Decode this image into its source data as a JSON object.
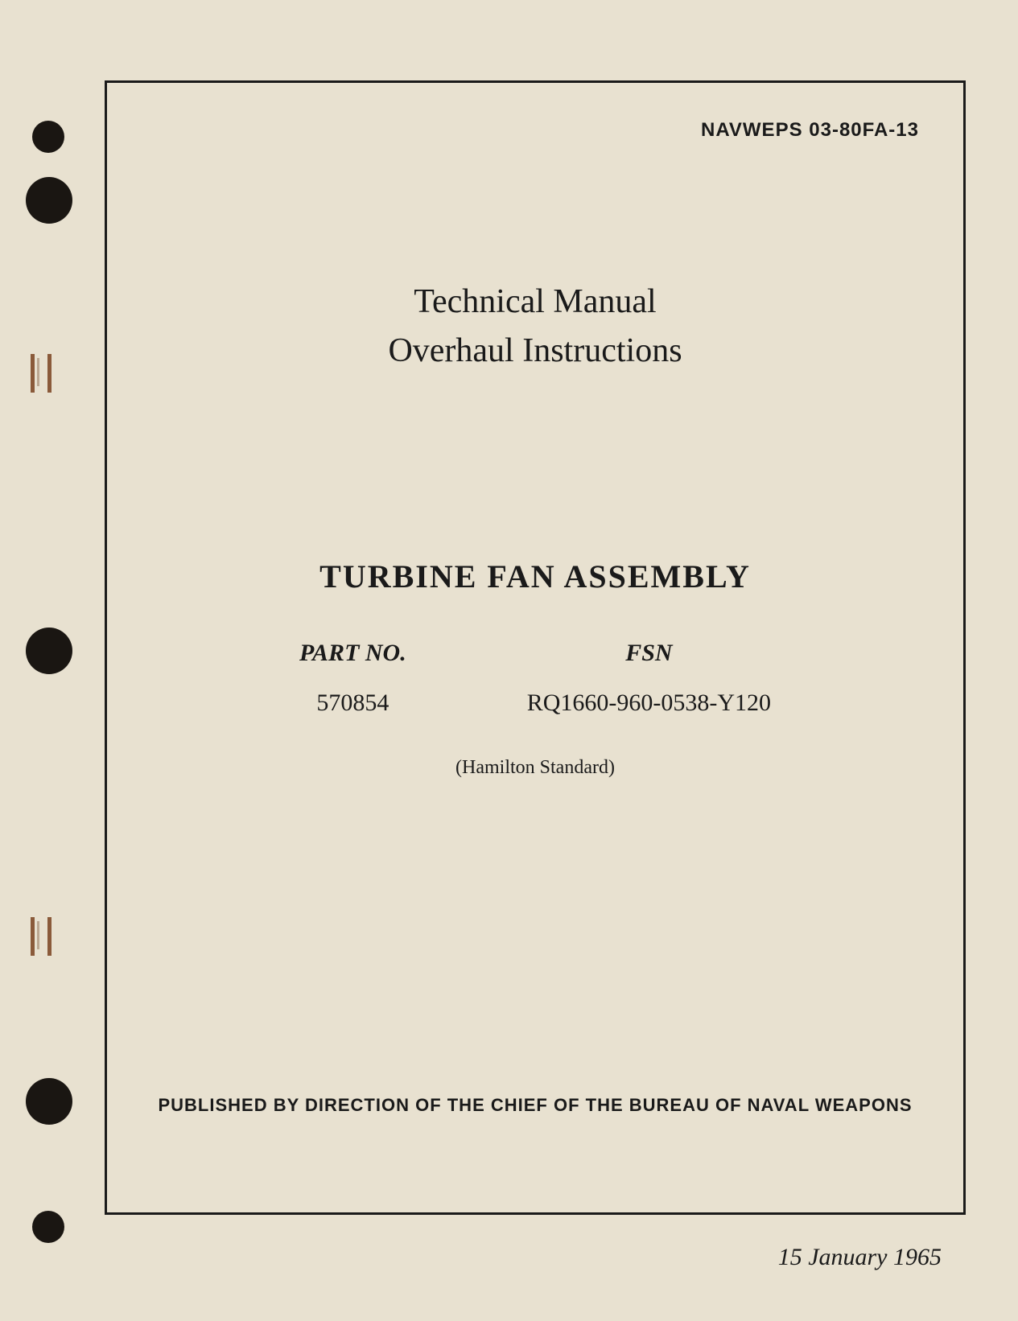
{
  "document": {
    "doc_id": "NAVWEPS 03-80FA-13",
    "title_line1": "Technical Manual",
    "title_line2": "Overhaul Instructions",
    "subject": "TURBINE FAN ASSEMBLY",
    "part_no_label": "PART NO.",
    "part_no_value": "570854",
    "fsn_label": "FSN",
    "fsn_value": "RQ1660-960-0538-Y120",
    "manufacturer": "(Hamilton Standard)",
    "publisher": "PUBLISHED BY DIRECTION OF THE CHIEF OF THE BUREAU OF NAVAL WEAPONS",
    "date": "15 January 1965"
  },
  "styling": {
    "page_bg": "#e8e1d0",
    "text_color": "#1a1a1a",
    "border_color": "#1a1a1a",
    "hole_color": "#1a1612",
    "staple_color": "#8a5a3a",
    "doc_id_fontsize": 24,
    "title_fontsize": 42,
    "subject_fontsize": 40,
    "info_fontsize": 30,
    "manufacturer_fontsize": 24,
    "publisher_fontsize": 22,
    "date_fontsize": 30,
    "border_width": 3
  }
}
